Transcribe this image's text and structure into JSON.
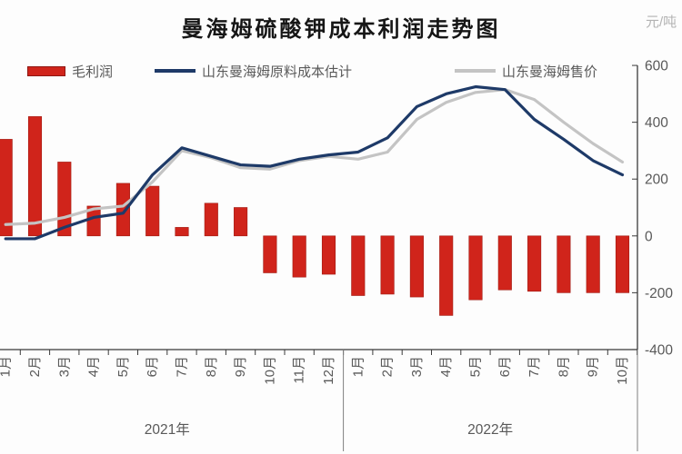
{
  "title": "曼海姆硫酸钾成本利润走势图",
  "unit_label": "元/吨",
  "legend": [
    {
      "label": "毛利润",
      "type": "bar",
      "color": "#d0241b"
    },
    {
      "label": "山东曼海姆原料成本估计",
      "type": "line",
      "color": "#1e3a68"
    },
    {
      "label": "山东曼海姆售价",
      "type": "line",
      "color": "#c4c4c4"
    }
  ],
  "chart_data": {
    "type": "bar+line combo",
    "title": "曼海姆硫酸钾成本利润走势图",
    "ylabel": "元/吨",
    "ylim": [
      -400,
      600
    ],
    "yticks": [
      "600",
      "400",
      "200",
      "0",
      "-200",
      "-400"
    ],
    "ytick_values": [
      600,
      400,
      200,
      0,
      -200,
      -400
    ],
    "grid": false,
    "legend_position": "top",
    "categories": [
      "1月",
      "2月",
      "3月",
      "4月",
      "5月",
      "6月",
      "7月",
      "8月",
      "9月",
      "10月",
      "11月",
      "12月",
      "1月",
      "2月",
      "3月",
      "4月",
      "5月",
      "6月",
      "7月",
      "8月",
      "9月",
      "10月"
    ],
    "year_groups": [
      {
        "label": "2021年",
        "count": 12
      },
      {
        "label": "2022年",
        "count": 10
      }
    ],
    "series": [
      {
        "name": "毛利润",
        "type": "bar",
        "color": "#d0241b",
        "values": [
          340,
          420,
          260,
          105,
          185,
          175,
          30,
          115,
          100,
          -130,
          -145,
          -135,
          -210,
          -205,
          -215,
          -280,
          -225,
          -190,
          -195,
          -200,
          -200,
          -200
        ]
      },
      {
        "name": "山东曼海姆原料成本估计",
        "type": "line",
        "color": "#1e3a68",
        "values": [
          -10,
          -10,
          30,
          65,
          80,
          215,
          310,
          280,
          250,
          245,
          270,
          285,
          295,
          345,
          455,
          500,
          525,
          515,
          410,
          340,
          265,
          215
        ]
      },
      {
        "name": "山东曼海姆售价",
        "type": "line",
        "color": "#c4c4c4",
        "values": [
          40,
          45,
          65,
          95,
          105,
          190,
          300,
          275,
          240,
          235,
          265,
          280,
          270,
          295,
          410,
          470,
          505,
          515,
          480,
          400,
          325,
          260
        ]
      }
    ]
  }
}
